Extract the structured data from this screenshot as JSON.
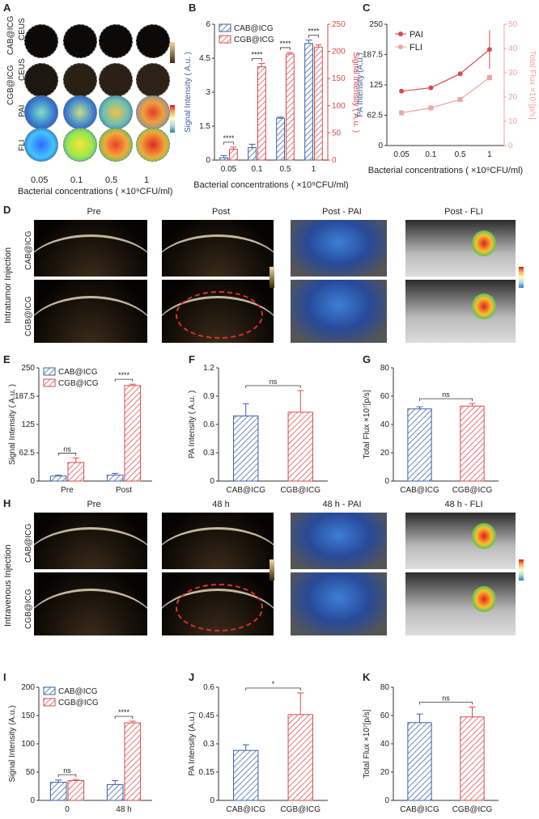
{
  "panels": {
    "A": {
      "letter": "A",
      "rows": [
        "CEUS",
        "CEUS",
        "PAI",
        "FLI"
      ],
      "group_labels": [
        "CAB@ICG",
        "CGB@ICG"
      ],
      "concentrations": [
        "0.05",
        "0.1",
        "0.5",
        "1"
      ],
      "xlabel": "Bacterial concentrations ( ×10⁹CFU/ml)"
    },
    "B": {
      "letter": "B"
    },
    "C": {
      "letter": "C"
    },
    "D": {
      "letter": "D",
      "cols": [
        "Pre",
        "Post",
        "Post - PAI",
        "Post - FLI"
      ],
      "rows": [
        "CAB@ICG",
        "CGB@ICG"
      ],
      "side_label": "Intratumor Injection"
    },
    "E": {
      "letter": "E"
    },
    "F": {
      "letter": "F"
    },
    "G": {
      "letter": "G"
    },
    "H": {
      "letter": "H",
      "cols": [
        "Pre",
        "48 h",
        "48 h - PAI",
        "48 h - FLI"
      ],
      "rows": [
        "CAB@ICG",
        "CGB@ICG"
      ],
      "side_label": "Intravenous Injection"
    },
    "I": {
      "letter": "I"
    },
    "J": {
      "letter": "J"
    },
    "K": {
      "letter": "K"
    }
  },
  "colors": {
    "blue": "#3b5fa8",
    "red": "#d94a4a",
    "pink": "#f0a4a4",
    "pai_line": "#d94a4a",
    "fli_line": "#f0a4a4"
  },
  "chart_data": [
    {
      "id": "B",
      "type": "bar",
      "categories": [
        "0.05",
        "0.1",
        "0.5",
        "1"
      ],
      "xlabel": "Bacterial concentrations ( ×10⁹CFU/ml)",
      "ylabel": "Signal Intensity ( A.u. )",
      "ylabel_right": "Signal Intensity ( A.u. )",
      "ylim": [
        0,
        6
      ],
      "ylim_right": [
        0,
        250
      ],
      "series": [
        {
          "name": "CAB@ICG",
          "axis": "left",
          "values": [
            0.1,
            0.55,
            1.85,
            5.15
          ],
          "errors": [
            0.1,
            0.15,
            0.05,
            0.15
          ]
        },
        {
          "name": "CGB@ICG",
          "axis": "right",
          "values": [
            20,
            172,
            195,
            208
          ],
          "errors": [
            4,
            6,
            3,
            4
          ]
        }
      ],
      "annotations": [
        "****",
        "****",
        "****",
        "****"
      ]
    },
    {
      "id": "C",
      "type": "line",
      "categories": [
        "0.05",
        "0.1",
        "0.5",
        "1"
      ],
      "xlabel": "Bacterial concentrations ( ×10⁹CFU/ml)",
      "ylabel": "PA Intensity (A.u.)",
      "ylabel_right": "Total Flux ×10⁷[p/s]",
      "ylim": [
        0,
        250
      ],
      "ylim_right": [
        0,
        50
      ],
      "series": [
        {
          "name": "PAI",
          "axis": "left",
          "values": [
            112,
            119,
            148,
            198
          ],
          "errors": [
            1,
            2,
            3,
            40
          ]
        },
        {
          "name": "FLI",
          "axis": "right",
          "values": [
            13.5,
            15.5,
            19,
            28
          ],
          "errors": [
            0.5,
            1,
            0.8,
            1.5
          ]
        }
      ]
    },
    {
      "id": "E",
      "type": "bar",
      "categories": [
        "Pre",
        "Post"
      ],
      "ylabel": "Signal Intensity ( A.u. )",
      "ylim": [
        0,
        250
      ],
      "series": [
        {
          "name": "CAB@ICG",
          "values": [
            11,
            13
          ],
          "errors": [
            2,
            4
          ]
        },
        {
          "name": "CGB@ICG",
          "values": [
            41,
            211
          ],
          "errors": [
            10,
            3
          ]
        }
      ],
      "annotations": [
        "ns",
        "****"
      ]
    },
    {
      "id": "F",
      "type": "bar",
      "categories": [
        "CAB@ICG",
        "CGB@ICG"
      ],
      "ylabel": "PA Intensity ( A.u. )",
      "ylim": [
        0,
        1.2
      ],
      "series": [
        {
          "name": "",
          "values": [
            0.69,
            0.73
          ],
          "errors": [
            0.13,
            0.23
          ]
        }
      ],
      "annotations": [
        "ns"
      ]
    },
    {
      "id": "G",
      "type": "bar",
      "categories": [
        "CAB@ICG",
        "CGB@ICG"
      ],
      "ylabel": "Total Flux ×10⁷[p/s]",
      "ylim": [
        0,
        80
      ],
      "series": [
        {
          "name": "",
          "values": [
            51,
            53
          ],
          "errors": [
            1.5,
            1.8
          ]
        }
      ],
      "annotations": [
        "ns"
      ]
    },
    {
      "id": "I",
      "type": "bar",
      "categories": [
        "0",
        "48 h"
      ],
      "ylabel": "Signal Intensity (A.u.)",
      "ylim": [
        0,
        200
      ],
      "series": [
        {
          "name": "CAB@ICG",
          "values": [
            32,
            28
          ],
          "errors": [
            4,
            7
          ]
        },
        {
          "name": "CGB@ICG",
          "values": [
            35,
            137
          ],
          "errors": [
            2,
            3
          ]
        }
      ],
      "annotations": [
        "ns",
        "****"
      ]
    },
    {
      "id": "J",
      "type": "bar",
      "categories": [
        "CAB@ICG",
        "CGB@ICG"
      ],
      "ylabel": "PA Intensity (A.u.)",
      "ylim": [
        0,
        0.6
      ],
      "series": [
        {
          "name": "",
          "values": [
            0.265,
            0.455
          ],
          "errors": [
            0.03,
            0.115
          ]
        }
      ],
      "annotations": [
        "*"
      ]
    },
    {
      "id": "K",
      "type": "bar",
      "categories": [
        "CAB@ICG",
        "CGB@ICG"
      ],
      "ylabel": "Total Flux ×10⁷[p/s]",
      "ylim": [
        0,
        80
      ],
      "series": [
        {
          "name": "",
          "values": [
            55,
            59
          ],
          "errors": [
            6,
            7
          ]
        }
      ],
      "annotations": [
        "ns"
      ]
    }
  ]
}
